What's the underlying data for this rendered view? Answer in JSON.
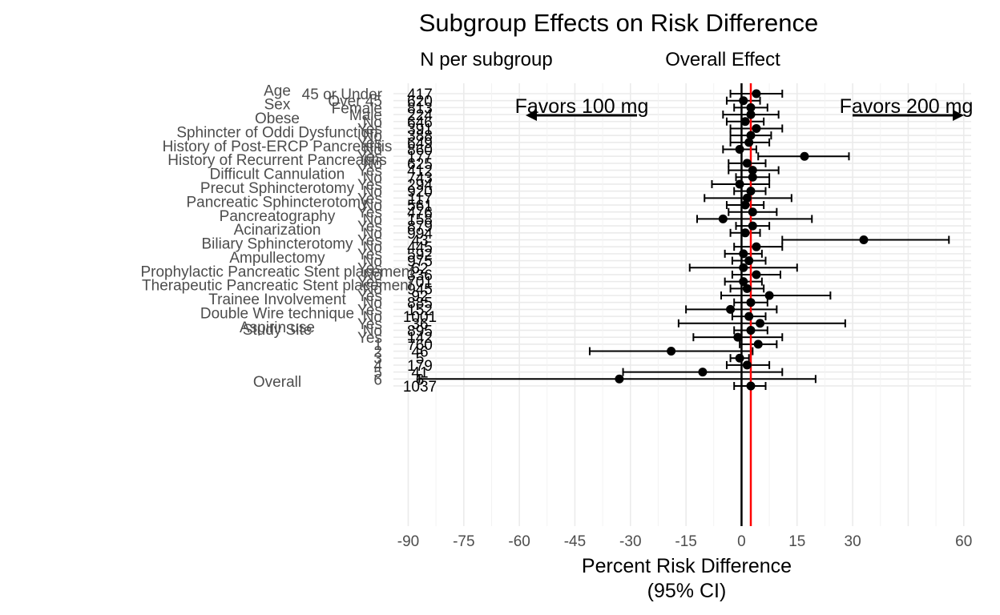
{
  "chart_data": {
    "type": "forest",
    "title": "Subgroup Effects on Risk Difference",
    "left_header": "N per subgroup",
    "right_header": "Overall Effect",
    "xlabel_line1": "Percent Risk Difference",
    "xlabel_line2": "(95% CI)",
    "favors_left": "Favors 100 mg",
    "favors_right": "Favors 200 mg",
    "xlim": [
      -94,
      62
    ],
    "xticks": [
      -90,
      -75,
      -60,
      -45,
      -30,
      -15,
      0,
      15,
      30,
      60
    ],
    "xtick_labels": [
      "-90",
      "-75",
      "-60",
      "-45",
      "-30",
      "-15",
      "0",
      "15",
      "30",
      "60"
    ],
    "overall_effect": 2.5,
    "colors": {
      "overall_line": "#ff0000",
      "zero_line": "#000000",
      "points": "#000000",
      "grid": "#ebebeb"
    },
    "groups": [
      {
        "label": "Age",
        "rows": [
          {
            "sub": "45 or Under",
            "n": "417",
            "est": 4,
            "lo": -3,
            "hi": 11
          },
          {
            "sub": "Over 45",
            "n": "620",
            "est": 0.5,
            "lo": -4,
            "hi": 5
          }
        ]
      },
      {
        "label": "Sex",
        "rows": [
          {
            "sub": "Female",
            "n": "813",
            "est": 2.5,
            "lo": -2,
            "hi": 7
          },
          {
            "sub": "Male",
            "n": "224",
            "est": 2.5,
            "lo": -5,
            "hi": 10
          }
        ]
      },
      {
        "label": "Obese",
        "rows": [
          {
            "sub": "No",
            "n": "646",
            "est": 1,
            "lo": -4,
            "hi": 6
          },
          {
            "sub": "Yes",
            "n": "391",
            "est": 4,
            "lo": -3,
            "hi": 11
          }
        ]
      },
      {
        "label": "Sphincter of Oddi Dysfunction",
        "rows": [
          {
            "sub": "No",
            "n": "388",
            "est": 2.5,
            "lo": -3,
            "hi": 8
          },
          {
            "sub": "Yes",
            "n": "649",
            "est": 2,
            "lo": -3,
            "hi": 7.5
          }
        ]
      },
      {
        "label": "History of Post-ERCP Pancreatitis",
        "rows": [
          {
            "sub": "No",
            "n": "860",
            "est": -0.5,
            "lo": -5,
            "hi": 4
          },
          {
            "sub": "Yes",
            "n": "177",
            "est": 17,
            "lo": 4.5,
            "hi": 29
          }
        ]
      },
      {
        "label": "History of Recurrent Pancreatitis",
        "rows": [
          {
            "sub": "No",
            "n": "625",
            "est": 1.5,
            "lo": -3.5,
            "hi": 6.5
          },
          {
            "sub": "Yes",
            "n": "412",
            "est": 3,
            "lo": -3.5,
            "hi": 10
          }
        ]
      },
      {
        "label": "Difficult Cannulation",
        "rows": [
          {
            "sub": "No",
            "n": "743",
            "est": 3,
            "lo": -1.5,
            "hi": 7.5
          },
          {
            "sub": "Yes",
            "n": "294",
            "est": -0.5,
            "lo": -8,
            "hi": 7.5
          }
        ]
      },
      {
        "label": "Precut Sphincterotomy",
        "rows": [
          {
            "sub": "No",
            "n": "920",
            "est": 2.5,
            "lo": -2,
            "hi": 6.5
          },
          {
            "sub": "Yes",
            "n": "117",
            "est": 1.5,
            "lo": -10,
            "hi": 13.5
          }
        ]
      },
      {
        "label": "Pancreatic Sphincterotomy",
        "rows": [
          {
            "sub": "No",
            "n": "561",
            "est": 1,
            "lo": -4,
            "hi": 6
          },
          {
            "sub": "Yes",
            "n": "476",
            "est": 3,
            "lo": -3.5,
            "hi": 9.5
          }
        ]
      },
      {
        "label": "Pancreatography",
        "rows": [
          {
            "sub": "No",
            "n": "158",
            "est": -5,
            "lo": -12,
            "hi": 19
          },
          {
            "sub": "Yes",
            "n": "879",
            "est": 3,
            "lo": -1.5,
            "hi": 7.5
          }
        ]
      },
      {
        "label": "Acinarization",
        "rows": [
          {
            "sub": "No",
            "n": "994",
            "est": 1,
            "lo": -3,
            "hi": 5
          },
          {
            "sub": "Yes",
            "n": "43",
            "est": 33,
            "lo": 11,
            "hi": 56
          }
        ]
      },
      {
        "label": "Biliary Sphincterotomy",
        "rows": [
          {
            "sub": "No",
            "n": "445",
            "est": 4,
            "lo": -2,
            "hi": 11
          },
          {
            "sub": "Yes",
            "n": "592",
            "est": 0.5,
            "lo": -4.5,
            "hi": 5.5
          }
        ]
      },
      {
        "label": "Ampullectomy",
        "rows": [
          {
            "sub": "No",
            "n": "975",
            "est": 2,
            "lo": -2.5,
            "hi": 6.5
          },
          {
            "sub": "Yes",
            "n": "62",
            "est": 0.5,
            "lo": -14,
            "hi": 15
          }
        ]
      },
      {
        "label": "Prophylactic Pancreatic Stent placement",
        "rows": [
          {
            "sub": "No",
            "n": "336",
            "est": 4,
            "lo": -2.5,
            "hi": 10.5
          },
          {
            "sub": "Yes",
            "n": "701",
            "est": 0.5,
            "lo": -4.5,
            "hi": 5.5
          }
        ]
      },
      {
        "label": "Therapeutic Pancreatic Stent placement",
        "rows": [
          {
            "sub": "No",
            "n": "945",
            "est": 1.5,
            "lo": -3,
            "hi": 6
          },
          {
            "sub": "Yes",
            "n": "92",
            "est": 7.5,
            "lo": -5.5,
            "hi": 24
          }
        ]
      },
      {
        "label": "Trainee Involvement",
        "rows": [
          {
            "sub": "No",
            "n": "885",
            "est": 2.5,
            "lo": -2,
            "hi": 7
          },
          {
            "sub": "Yes",
            "n": "152",
            "est": -3,
            "lo": -15,
            "hi": 9.5
          }
        ]
      },
      {
        "label": "Double Wire technique",
        "rows": [
          {
            "sub": "No",
            "n": "1001",
            "est": 2,
            "lo": -2.5,
            "hi": 6.5
          },
          {
            "sub": "Yes",
            "n": "36",
            "est": 5,
            "lo": -17,
            "hi": 28
          }
        ]
      },
      {
        "label": "Aspirin use",
        "rows": [
          {
            "sub": "No",
            "n": "895",
            "est": 2.5,
            "lo": -2,
            "hi": 7
          },
          {
            "sub": "Yes",
            "n": "142",
            "est": -1,
            "lo": -13,
            "hi": 11
          }
        ]
      },
      {
        "label": "Study Site",
        "rows": [
          {
            "sub": "1",
            "n": "760",
            "est": 4.5,
            "lo": -0.5,
            "hi": 9.5
          },
          {
            "sub": "2",
            "n": "46",
            "est": -19,
            "lo": -41,
            "hi": 3
          },
          {
            "sub": "3",
            "n": "5",
            "est": -0.5,
            "lo": -3,
            "hi": 2
          },
          {
            "sub": "4",
            "n": "179",
            "est": 1.5,
            "lo": -4,
            "hi": 7.5
          },
          {
            "sub": "5",
            "n": "41",
            "est": -10.5,
            "lo": -32,
            "hi": 11
          },
          {
            "sub": "6",
            "n": "6",
            "est": -33,
            "lo": -87,
            "hi": 20
          }
        ]
      },
      {
        "label": "Overall",
        "rows": [
          {
            "sub": "",
            "n": "1037",
            "est": 2.5,
            "lo": -2,
            "hi": 6.5
          }
        ]
      }
    ]
  }
}
